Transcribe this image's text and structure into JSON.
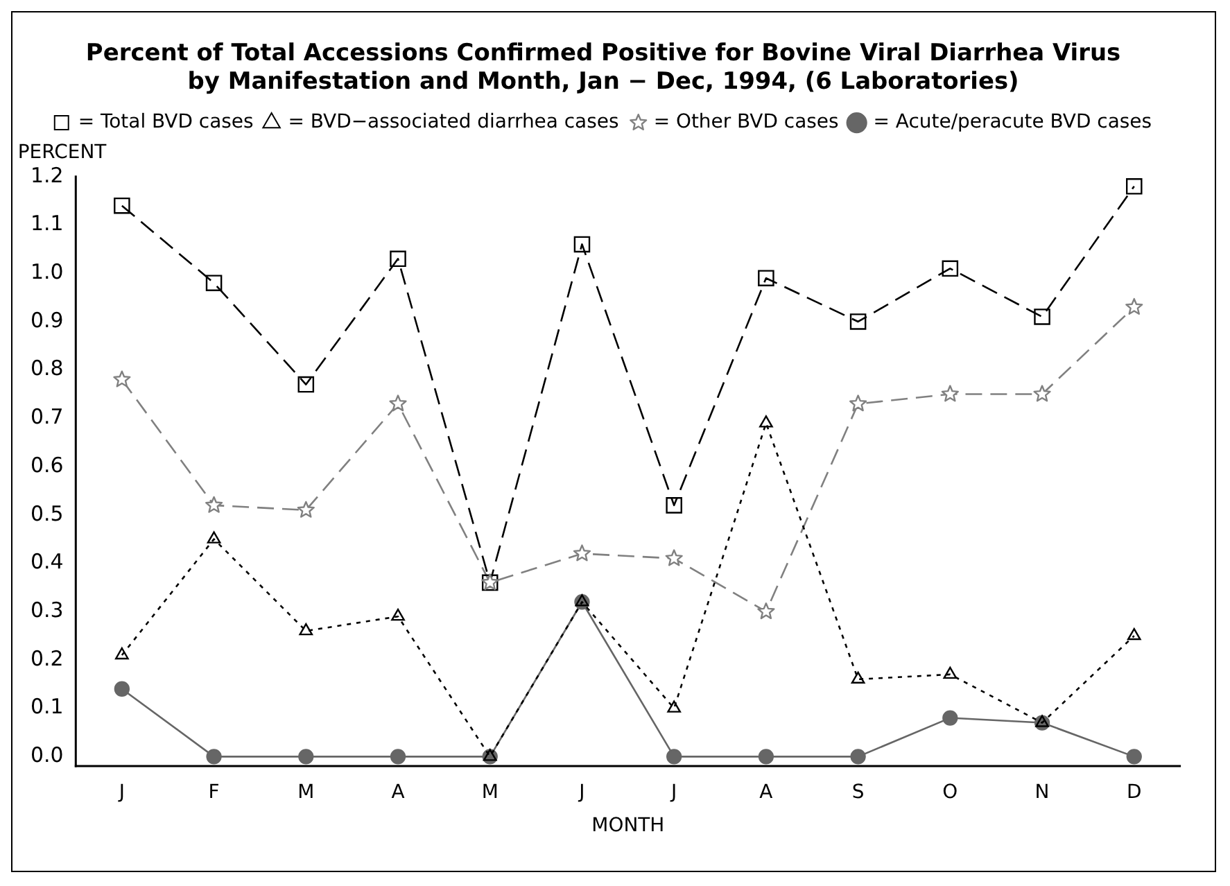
{
  "chart_data": {
    "type": "line",
    "title": [
      "Percent of Total Accessions Confirmed Positive for Bovine Viral Diarrhea Virus",
      "by Manifestation and Month, Jan − Dec, 1994, (6 Laboratories)"
    ],
    "xlabel": "MONTH",
    "ylabel": "PERCENT",
    "categories": [
      "J",
      "F",
      "M",
      "A",
      "M",
      "J",
      "J",
      "A",
      "S",
      "O",
      "N",
      "D"
    ],
    "series": [
      {
        "name": "= Total BVD cases",
        "color": "#000000",
        "marker": "square",
        "line_style": "dashed",
        "values": [
          1.14,
          0.98,
          0.77,
          1.03,
          0.36,
          1.06,
          0.52,
          0.99,
          0.9,
          1.01,
          0.91,
          1.18
        ]
      },
      {
        "name": "= BVD−associated diarrhea cases",
        "color": "#000000",
        "marker": "triangle",
        "line_style": "dotted",
        "values": [
          0.21,
          0.45,
          0.26,
          0.29,
          0.0,
          0.32,
          0.1,
          0.69,
          0.16,
          0.17,
          0.07,
          0.25
        ]
      },
      {
        "name": "= Other BVD cases",
        "color": "#808080",
        "marker": "star",
        "line_style": "dashed",
        "values": [
          0.78,
          0.52,
          0.51,
          0.73,
          0.36,
          0.42,
          0.41,
          0.3,
          0.73,
          0.75,
          0.75,
          0.93
        ]
      },
      {
        "name": "= Acute/peracute BVD cases",
        "color": "#666666",
        "marker": "circle",
        "line_style": "solid",
        "values": [
          0.14,
          0.0,
          0.0,
          0.0,
          0.0,
          0.32,
          0.0,
          0.0,
          0.0,
          0.08,
          0.07,
          0.0
        ]
      }
    ],
    "ylim": [
      -0.02,
      1.2
    ],
    "yticks": [
      {
        "value": 0,
        "label": "0.0"
      },
      0.1,
      0.2,
      0.3,
      0.4,
      0.5,
      0.6,
      0.7,
      0.8,
      0.9,
      {
        "value": 1,
        "label": "1.0"
      },
      1.1,
      1.2
    ],
    "grid": false,
    "legend": "top"
  }
}
